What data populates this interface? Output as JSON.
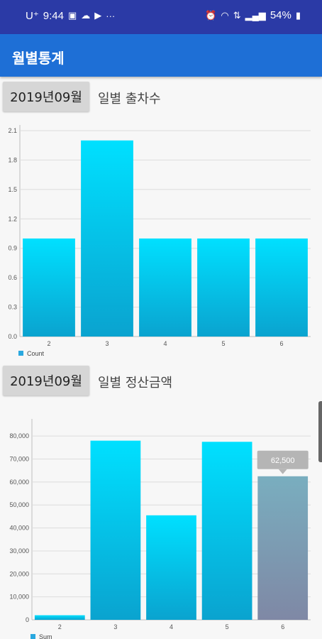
{
  "status_bar": {
    "time": "9:44",
    "carrier": "U⁺",
    "battery": "54%"
  },
  "app_bar": {
    "title": "월별통계"
  },
  "section1": {
    "month_label": "2019년09월",
    "title": "일별 출차수"
  },
  "section2": {
    "month_label": "2019년09월",
    "title": "일별 정산금액"
  },
  "colors": {
    "status_bar": "#2b3aa6",
    "app_bar": "#1e6fd6",
    "bar_top": "#00e0ff",
    "bar_bottom": "#0aa3cf",
    "highlight_top": "#79aebf",
    "highlight_bottom": "#7f88a5"
  },
  "chart_data": [
    {
      "type": "bar",
      "categories": [
        "2",
        "3",
        "4",
        "5",
        "6"
      ],
      "series": [
        {
          "name": "Count",
          "values": [
            1,
            2,
            1,
            1,
            1
          ]
        }
      ],
      "ylim": [
        0,
        2.1
      ],
      "yticks": [
        "0.0",
        "0.3",
        "0.6",
        "0.9",
        "1.2",
        "1.5",
        "1.8",
        "2.1"
      ],
      "legend": "bottom-left",
      "grid": true
    },
    {
      "type": "bar",
      "categories": [
        "2",
        "3",
        "4",
        "5",
        "6"
      ],
      "series": [
        {
          "name": "Sum",
          "values": [
            2000,
            78000,
            45500,
            77500,
            62500
          ]
        }
      ],
      "ylim": [
        0,
        85000
      ],
      "yticks": [
        "0",
        "10,000",
        "20,000",
        "30,000",
        "40,000",
        "50,000",
        "60,000",
        "70,000",
        "80,000"
      ],
      "highlight_index": 4,
      "highlight_label": "62,500",
      "legend": "bottom-left",
      "grid": true
    }
  ]
}
